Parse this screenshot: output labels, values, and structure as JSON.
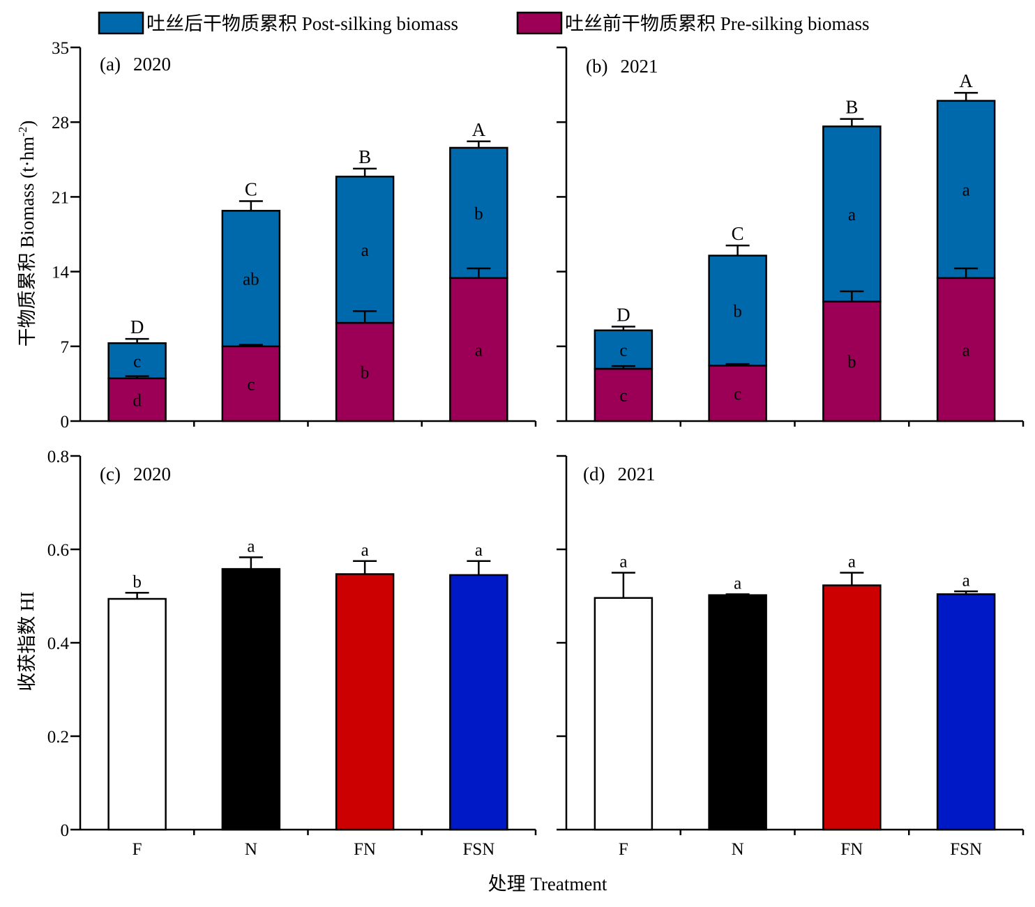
{
  "legend": {
    "post_label": "吐丝后干物质累积 Post-silking biomass",
    "pre_label": "吐丝前干物质累积 Pre-silking biomass"
  },
  "labels": {
    "ylabel_top_main": "干物质累积 Biomass (t·hm",
    "ylabel_top_sup": "-2",
    "ylabel_top_end": ")",
    "ylabel_bottom": "收获指数 HI",
    "xlabel": "处理 Treatment"
  },
  "colors": {
    "post": "#0069ab",
    "pre": "#9b0056",
    "hi_bars": [
      "#ffffff",
      "#000000",
      "#cc0000",
      "#0019c6"
    ]
  },
  "chart_data": [
    {
      "panel": "(a)",
      "year": "2020",
      "type": "bar",
      "stacked": true,
      "categories": [
        "F",
        "N",
        "FN",
        "FSN"
      ],
      "ylim": [
        0,
        35
      ],
      "yticks": [
        "0",
        "7",
        "14",
        "21",
        "28",
        "35"
      ],
      "series": [
        {
          "name": "吐丝前干物质累积 Pre-silking biomass",
          "values": [
            4.0,
            7.0,
            9.2,
            13.4
          ],
          "errors": [
            0.2,
            0.15,
            1.1,
            0.9
          ],
          "letters": [
            "d",
            "c",
            "b",
            "a"
          ]
        },
        {
          "name": "吐丝后干物质累积 Post-silking biomass",
          "values": [
            3.3,
            12.7,
            13.7,
            12.2
          ],
          "errors": [
            0.4,
            0.9,
            0.75,
            0.6
          ],
          "letters": [
            "c",
            "ab",
            "a",
            "b"
          ]
        }
      ],
      "total_letters": [
        "D",
        "C",
        "B",
        "A"
      ]
    },
    {
      "panel": "(b)",
      "year": "2021",
      "type": "bar",
      "stacked": true,
      "categories": [
        "F",
        "N",
        "FN",
        "FSN"
      ],
      "ylim": [
        0,
        35
      ],
      "yticks": [
        "0",
        "7",
        "14",
        "21",
        "28",
        "35"
      ],
      "series": [
        {
          "name": "吐丝前干物质累积 Pre-silking biomass",
          "values": [
            4.9,
            5.2,
            11.2,
            13.4
          ],
          "errors": [
            0.25,
            0.15,
            0.95,
            0.9
          ],
          "letters": [
            "c",
            "c",
            "b",
            "a"
          ]
        },
        {
          "name": "吐丝后干物质累积 Post-silking biomass",
          "values": [
            3.6,
            10.3,
            16.4,
            16.6
          ],
          "errors": [
            0.35,
            0.95,
            0.7,
            0.75
          ],
          "letters": [
            "c",
            "b",
            "a",
            "a"
          ]
        }
      ],
      "total_letters": [
        "D",
        "C",
        "B",
        "A"
      ]
    },
    {
      "panel": "(c)",
      "year": "2020",
      "type": "bar",
      "categories": [
        "F",
        "N",
        "FN",
        "FSN"
      ],
      "ylim": [
        0,
        0.8
      ],
      "yticks": [
        "0",
        "0.2",
        "0.4",
        "0.6",
        "0.8"
      ],
      "values": [
        0.494,
        0.558,
        0.547,
        0.545
      ],
      "errors": [
        0.013,
        0.025,
        0.028,
        0.03
      ],
      "letters": [
        "b",
        "a",
        "a",
        "a"
      ]
    },
    {
      "panel": "(d)",
      "year": "2021",
      "type": "bar",
      "categories": [
        "F",
        "N",
        "FN",
        "FSN"
      ],
      "ylim": [
        0,
        0.8
      ],
      "yticks": [
        "0",
        "0.2",
        "0.4",
        "0.6",
        "0.8"
      ],
      "values": [
        0.496,
        0.502,
        0.523,
        0.504
      ],
      "errors": [
        0.054,
        0.002,
        0.027,
        0.006
      ],
      "letters": [
        "a",
        "a",
        "a",
        "a"
      ]
    }
  ]
}
